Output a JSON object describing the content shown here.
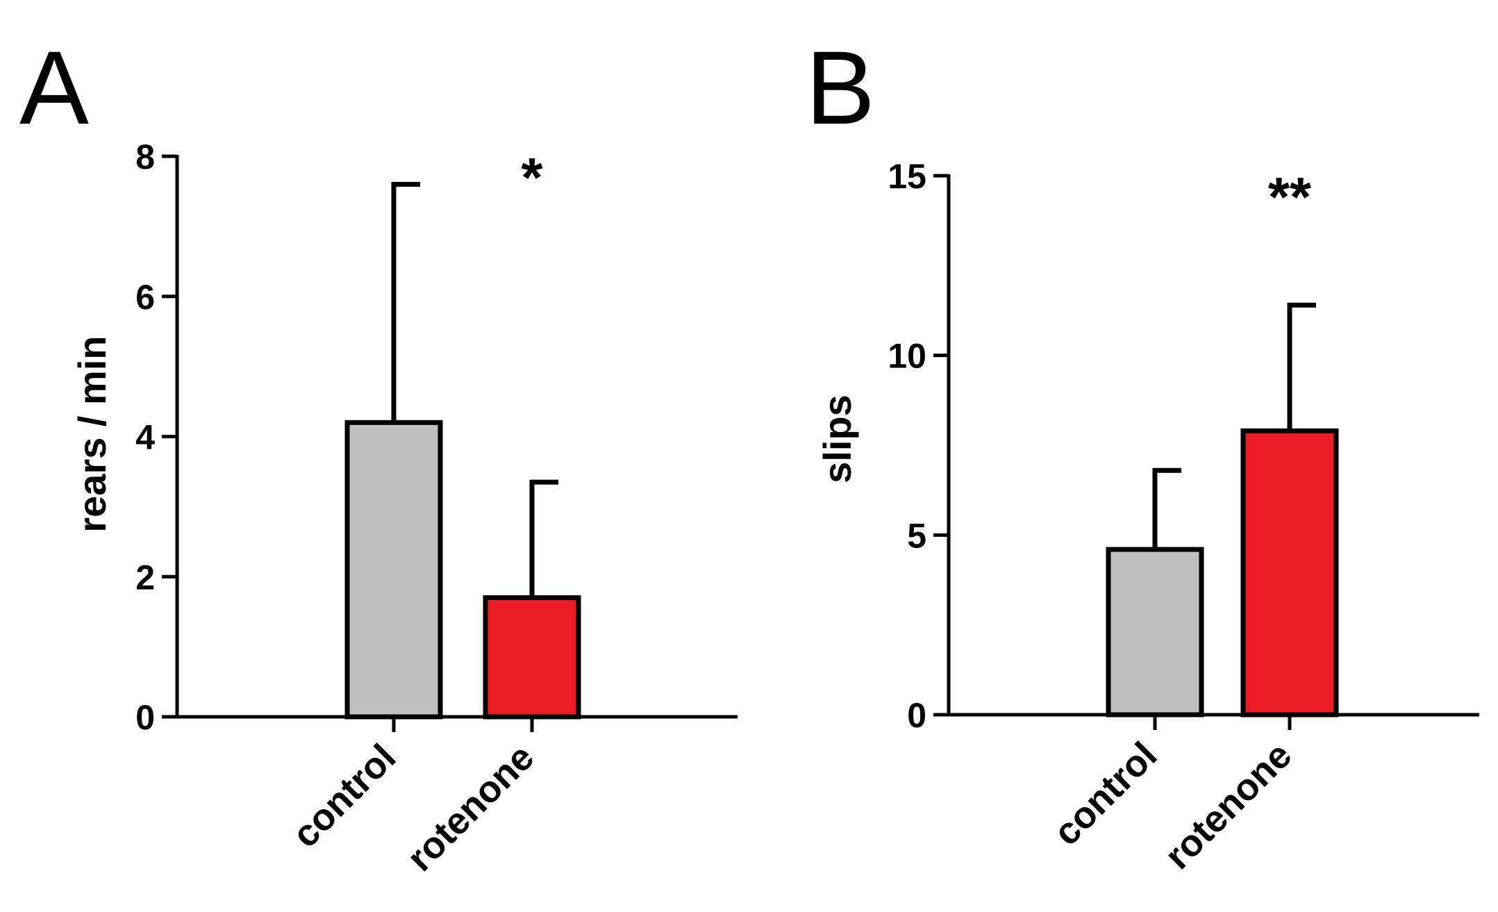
{
  "chart_data": [
    {
      "type": "bar",
      "panel_label": "A",
      "categories": [
        "control",
        "rotenone"
      ],
      "values": [
        4.2,
        1.7
      ],
      "error_upper": [
        7.6,
        3.35
      ],
      "colors": [
        "#c0c0c0",
        "#ec1c24"
      ],
      "significance": [
        "",
        "*"
      ],
      "ylabel": "rears / min",
      "ylim": [
        0,
        8
      ],
      "yticks": [
        "0",
        "2",
        "4",
        "6",
        "8"
      ],
      "ytick_values": [
        0,
        2,
        4,
        6,
        8
      ],
      "grid": false,
      "legend": "none"
    },
    {
      "type": "bar",
      "panel_label": "B",
      "categories": [
        "control",
        "rotenone"
      ],
      "values": [
        4.6,
        7.9
      ],
      "error_upper": [
        6.8,
        11.4
      ],
      "colors": [
        "#c0c0c0",
        "#ec1c24"
      ],
      "significance": [
        "",
        "**"
      ],
      "ylabel": "slips",
      "ylim": [
        0,
        15
      ],
      "yticks": [
        "0",
        "5",
        "10",
        "15"
      ],
      "ytick_values": [
        0,
        5,
        10,
        15
      ],
      "grid": false,
      "legend": "none"
    }
  ]
}
